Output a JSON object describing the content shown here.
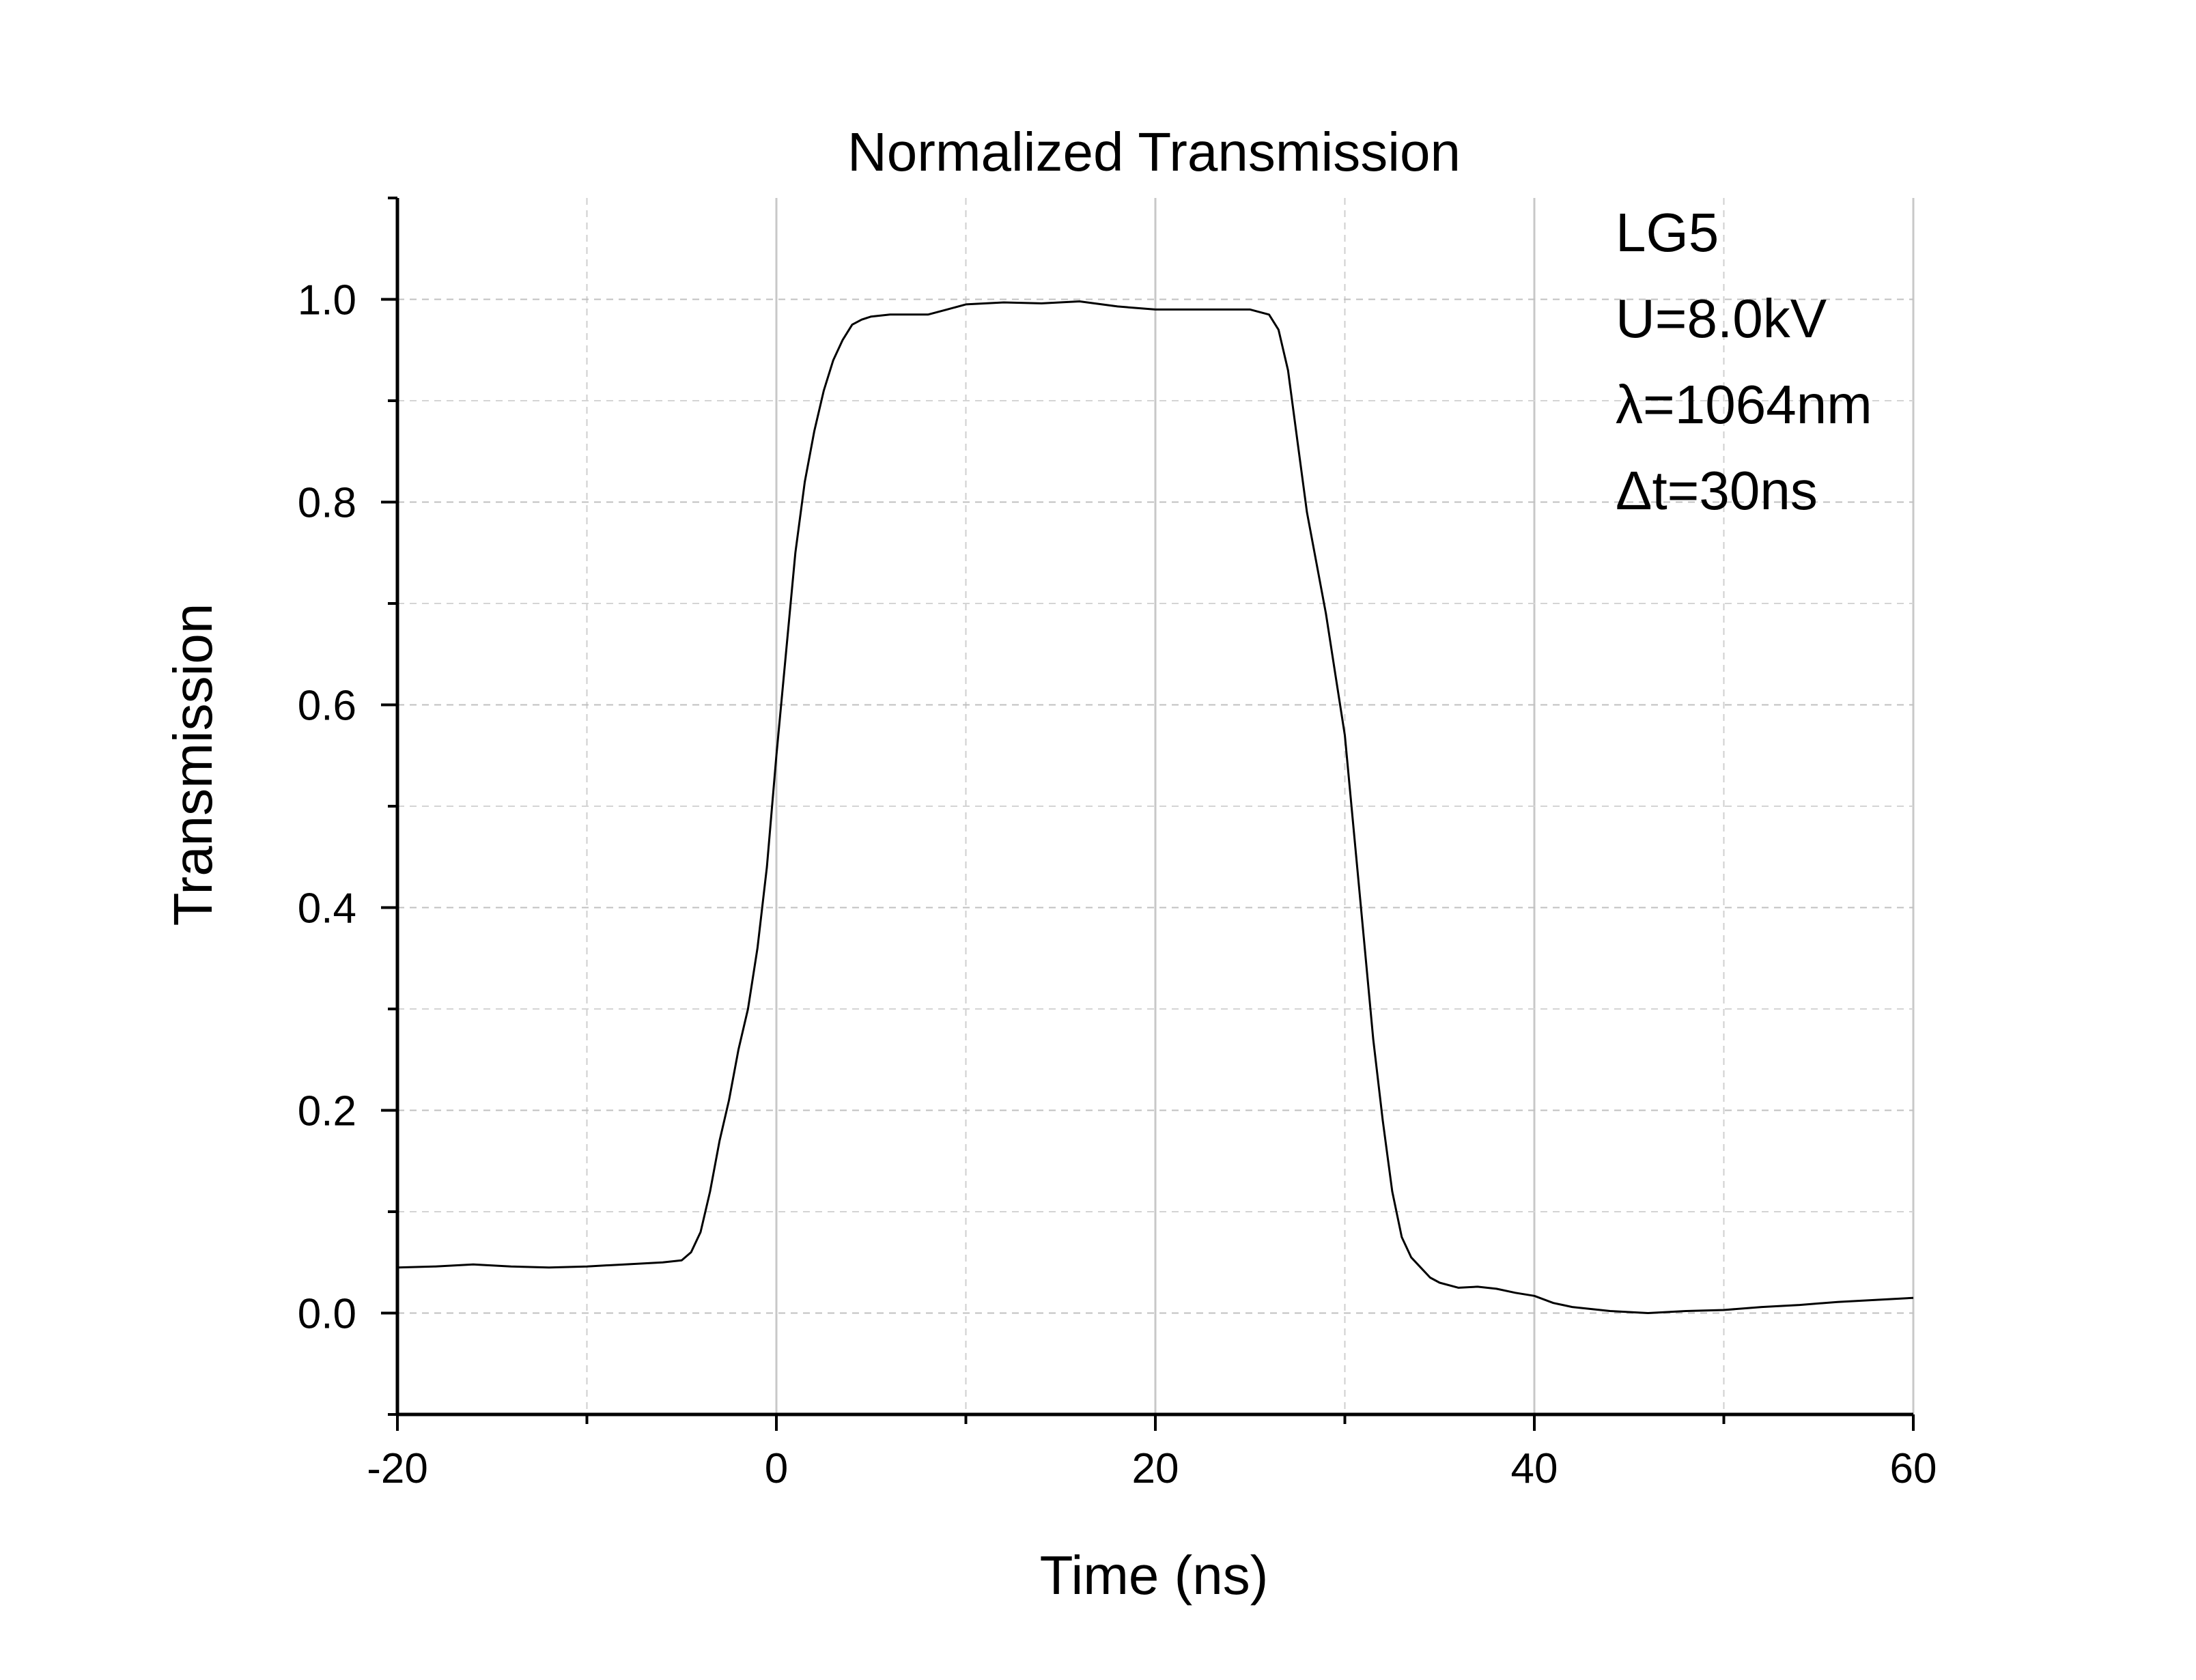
{
  "chart_data": {
    "type": "line",
    "title": "Normalized Transmission",
    "xlabel": "Time (ns)",
    "ylabel": "Transmission",
    "xlim": [
      -20,
      60
    ],
    "ylim": [
      -0.1,
      1.1
    ],
    "xticks": [
      "-20",
      "0",
      "20",
      "40",
      "60"
    ],
    "yticks": [
      "0.0",
      "0.2",
      "0.4",
      "0.6",
      "0.8",
      "1.0"
    ],
    "grid": true,
    "annotations": [
      "LG5",
      "U=8.0kV",
      "λ=1064nm",
      "Δt=30ns"
    ],
    "series": [
      {
        "x": [
          -20,
          -18,
          -16,
          -14,
          -12,
          -10,
          -8,
          -6,
          -5,
          -4.5,
          -4,
          -3.5,
          -3,
          -2.5,
          -2,
          -1.5,
          -1,
          -0.5,
          0,
          0.5,
          1,
          1.5,
          2,
          2.5,
          3,
          3.5,
          4,
          4.5,
          5,
          6,
          7,
          8,
          9,
          10,
          12,
          14,
          16,
          18,
          20,
          22,
          24,
          25,
          26,
          26.5,
          27,
          27.5,
          28,
          28.5,
          29,
          29.5,
          30,
          30.5,
          31,
          31.5,
          32,
          32.5,
          33,
          33.5,
          34,
          34.5,
          35,
          36,
          37,
          38,
          39,
          40,
          41,
          42,
          44,
          46,
          48,
          50,
          52,
          54,
          56,
          58,
          60
        ],
        "y": [
          0.045,
          0.046,
          0.048,
          0.046,
          0.045,
          0.046,
          0.048,
          0.05,
          0.052,
          0.06,
          0.08,
          0.12,
          0.17,
          0.21,
          0.26,
          0.3,
          0.36,
          0.44,
          0.55,
          0.65,
          0.75,
          0.82,
          0.87,
          0.91,
          0.94,
          0.96,
          0.975,
          0.98,
          0.983,
          0.985,
          0.985,
          0.985,
          0.99,
          0.995,
          0.997,
          0.996,
          0.998,
          0.993,
          0.99,
          0.99,
          0.99,
          0.99,
          0.985,
          0.97,
          0.93,
          0.86,
          0.79,
          0.74,
          0.69,
          0.63,
          0.57,
          0.47,
          0.37,
          0.27,
          0.19,
          0.12,
          0.075,
          0.055,
          0.045,
          0.035,
          0.03,
          0.025,
          0.026,
          0.024,
          0.02,
          0.017,
          0.01,
          0.006,
          0.002,
          0.0,
          0.002,
          0.003,
          0.006,
          0.008,
          0.011,
          0.013,
          0.015
        ]
      }
    ]
  }
}
